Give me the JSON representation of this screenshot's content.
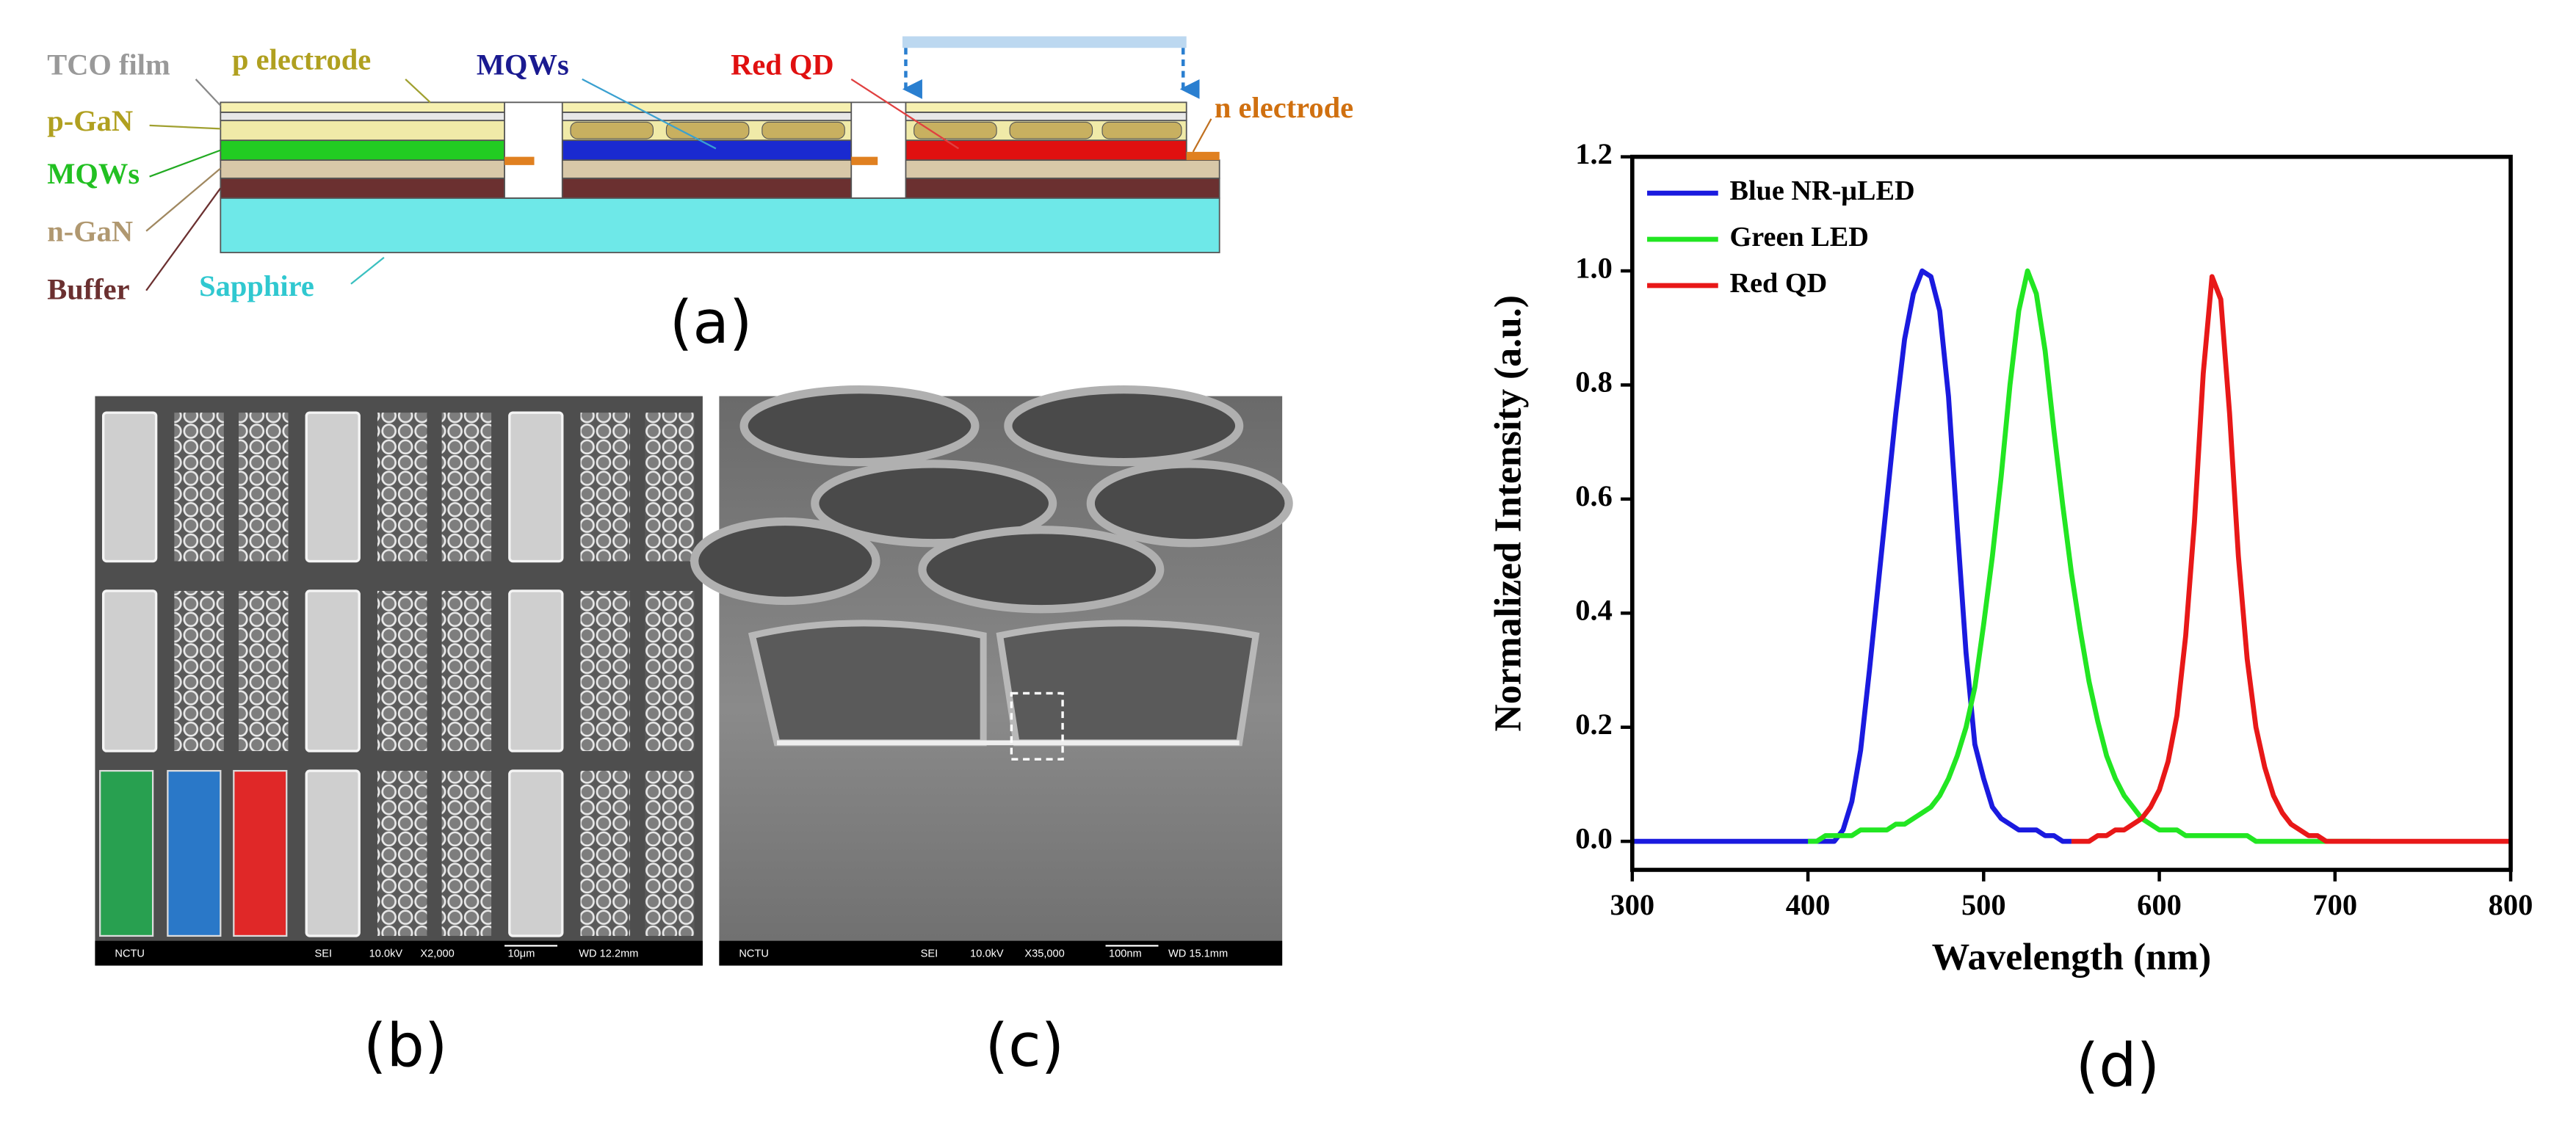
{
  "panels": {
    "a": "(a)",
    "b": "(b)",
    "c": "(c)",
    "d": "(d)"
  },
  "diagram": {
    "tco_film": "TCO film",
    "p_electrode": "p electrode",
    "mqws_blue": "MQWs",
    "red_qd": "Red QD",
    "p_gan": "p-GaN",
    "n_electrode": "n electrode",
    "mqws_green": "MQWs",
    "n_gan": "n-GaN",
    "buffer": "Buffer",
    "sapphire": "Sapphire"
  },
  "sem_b": {
    "lab": "NCTU",
    "mode": "SEI",
    "voltage": "10.0kV",
    "magnification": "X2,000",
    "scale": "10μm",
    "wd": "WD 12.2mm"
  },
  "sem_c": {
    "lab": "NCTU",
    "mode": "SEI",
    "voltage": "10.0kV",
    "magnification": "X35,000",
    "scale": "100nm",
    "wd": "WD 15.1mm"
  },
  "chart_data": {
    "type": "line",
    "x_label": "Wavelength (nm)",
    "y_label": "Normalized Intensity (a.u.)",
    "xlim": [
      300,
      800
    ],
    "xticks": [
      300,
      400,
      500,
      600,
      700,
      800
    ],
    "ylim": [
      -0.05,
      1.2
    ],
    "yticks": [
      {
        "value": 0,
        "label": "0.0"
      },
      {
        "value": 0.2,
        "label": "0.2"
      },
      {
        "value": 0.4,
        "label": "0.4"
      },
      {
        "value": 0.6,
        "label": "0.6"
      },
      {
        "value": 0.8,
        "label": "0.8"
      },
      {
        "value": 1,
        "label": "1.0"
      },
      {
        "value": 1.2,
        "label": "1.2"
      }
    ],
    "legend": "top-left",
    "x": [
      300,
      305,
      310,
      315,
      320,
      325,
      330,
      335,
      340,
      345,
      350,
      355,
      360,
      365,
      370,
      375,
      380,
      385,
      390,
      395,
      400,
      405,
      410,
      415,
      420,
      425,
      430,
      435,
      440,
      445,
      450,
      455,
      460,
      465,
      470,
      475,
      480,
      485,
      490,
      495,
      500,
      505,
      510,
      515,
      520,
      525,
      530,
      535,
      540,
      545,
      550,
      555,
      560,
      565,
      570,
      575,
      580,
      585,
      590,
      595,
      600,
      605,
      610,
      615,
      620,
      625,
      630,
      635,
      640,
      645,
      650,
      655,
      660,
      665,
      670,
      675,
      680,
      685,
      690,
      695,
      700,
      705,
      710,
      715,
      720,
      725,
      730,
      735,
      740,
      745,
      750,
      755,
      760,
      765,
      770,
      775,
      780,
      785,
      790,
      795,
      800
    ],
    "series": [
      {
        "name": "Blue NR-μLED",
        "color": "#1a1adf",
        "values": [
          0,
          0,
          0,
          0,
          0,
          0,
          0,
          0,
          0,
          0,
          0,
          0,
          0,
          0,
          0,
          0,
          0,
          0,
          0,
          0,
          0,
          0,
          0,
          0,
          0.02,
          0.07,
          0.16,
          0.3,
          0.45,
          0.6,
          0.75,
          0.88,
          0.96,
          1.0,
          0.99,
          0.93,
          0.78,
          0.55,
          0.33,
          0.17,
          0.11,
          0.06,
          0.04,
          0.03,
          0.02,
          0.02,
          0.02,
          0.01,
          0.01,
          0,
          0,
          null,
          null,
          null,
          null,
          null,
          null,
          null,
          null,
          null,
          null,
          null,
          null,
          null,
          null,
          null,
          null,
          null,
          null,
          null,
          null,
          null,
          null,
          null,
          null,
          null,
          null,
          null,
          null,
          null,
          null,
          null,
          null,
          null,
          null,
          null,
          null,
          null,
          null,
          null,
          null,
          null,
          null,
          null,
          null,
          null,
          null,
          null,
          null,
          null,
          null
        ]
      },
      {
        "name": "Green LED",
        "color": "#22e622",
        "values": [
          null,
          null,
          null,
          null,
          null,
          null,
          null,
          null,
          null,
          null,
          null,
          null,
          null,
          null,
          null,
          null,
          null,
          null,
          null,
          null,
          0,
          0,
          0.01,
          0.01,
          0.01,
          0.01,
          0.02,
          0.02,
          0.02,
          0.02,
          0.03,
          0.03,
          0.04,
          0.05,
          0.06,
          0.08,
          0.11,
          0.15,
          0.2,
          0.27,
          0.38,
          0.5,
          0.64,
          0.8,
          0.93,
          1.0,
          0.96,
          0.86,
          0.72,
          0.59,
          0.47,
          0.37,
          0.28,
          0.21,
          0.15,
          0.11,
          0.08,
          0.06,
          0.04,
          0.03,
          0.02,
          0.02,
          0.02,
          0.01,
          0.01,
          0.01,
          0.01,
          0.01,
          0.01,
          0.01,
          0.01,
          0,
          0,
          0,
          0,
          0,
          0,
          0,
          0,
          0,
          0,
          0,
          0,
          0,
          0,
          null,
          null,
          null,
          null,
          null,
          null,
          null,
          null,
          null,
          null,
          null,
          null,
          null,
          null,
          null,
          null
        ]
      },
      {
        "name": "Red QD",
        "color": "#e81818",
        "values": [
          null,
          null,
          null,
          null,
          null,
          null,
          null,
          null,
          null,
          null,
          null,
          null,
          null,
          null,
          null,
          null,
          null,
          null,
          null,
          null,
          null,
          null,
          null,
          null,
          null,
          null,
          null,
          null,
          null,
          null,
          null,
          null,
          null,
          null,
          null,
          null,
          null,
          null,
          null,
          null,
          null,
          null,
          null,
          null,
          null,
          null,
          null,
          null,
          null,
          null,
          0,
          0,
          0,
          0.01,
          0.01,
          0.02,
          0.02,
          0.03,
          0.04,
          0.06,
          0.09,
          0.14,
          0.22,
          0.36,
          0.56,
          0.82,
          0.99,
          0.95,
          0.75,
          0.5,
          0.32,
          0.2,
          0.13,
          0.08,
          0.05,
          0.03,
          0.02,
          0.01,
          0.01,
          0,
          0,
          0,
          0,
          0,
          0,
          0,
          0,
          0,
          0,
          0,
          0,
          0,
          0,
          0,
          0,
          0,
          0,
          0,
          0,
          0,
          0
        ]
      }
    ]
  }
}
